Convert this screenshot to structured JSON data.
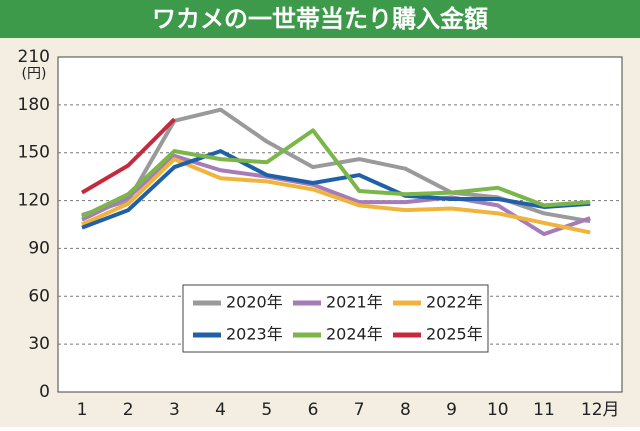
{
  "chart_data": {
    "type": "line",
    "title": "ワカメの一世帯当たり購入金額",
    "y_unit": "(円)",
    "categories": [
      "1",
      "2",
      "3",
      "4",
      "5",
      "6",
      "7",
      "8",
      "9",
      "10",
      "11",
      "12月"
    ],
    "series": [
      {
        "name": "2020年",
        "color": "#9a9a9a",
        "values": [
          111,
          120,
          170,
          177,
          157,
          141,
          146,
          140,
          125,
          122,
          112,
          107
        ]
      },
      {
        "name": "2021年",
        "color": "#a67cb8",
        "values": [
          108,
          122,
          148,
          139,
          135,
          130,
          119,
          119,
          122,
          117,
          99,
          109
        ]
      },
      {
        "name": "2022年",
        "color": "#f0b43c",
        "values": [
          105,
          118,
          146,
          134,
          132,
          127,
          117,
          114,
          115,
          112,
          106,
          100
        ]
      },
      {
        "name": "2023年",
        "color": "#2060a8",
        "values": [
          103,
          114,
          141,
          151,
          136,
          131,
          136,
          123,
          121,
          121,
          116,
          118
        ]
      },
      {
        "name": "2024年",
        "color": "#7ab648",
        "values": [
          110,
          124,
          151,
          146,
          144,
          164,
          126,
          124,
          125,
          128,
          117,
          119
        ]
      },
      {
        "name": "2025年",
        "color": "#c8283c",
        "values": [
          125,
          142,
          171,
          null,
          null,
          null,
          null,
          null,
          null,
          null,
          null,
          null
        ]
      }
    ],
    "ylim": [
      0,
      210
    ],
    "yticks": [
      0,
      30,
      60,
      90,
      120,
      150,
      180,
      210
    ],
    "grid": true
  }
}
